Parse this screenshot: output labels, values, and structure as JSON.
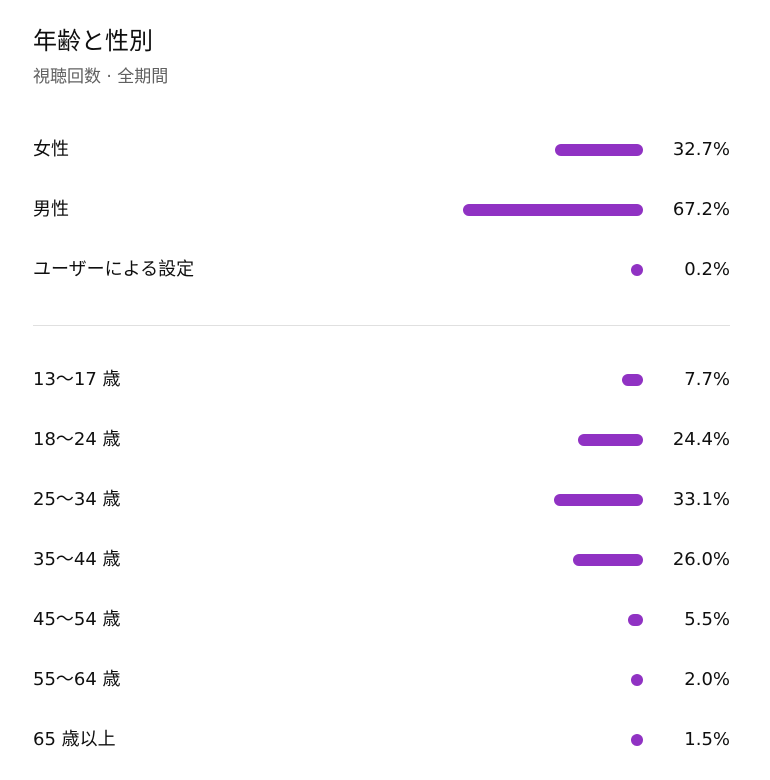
{
  "header": {
    "title": "年齢と性別",
    "subtitle": "視聴回数 · 全期間"
  },
  "colors": {
    "bar": "#9032c3",
    "divider": "#e0e0e0",
    "subtitle": "#606060"
  },
  "chart_data": [
    {
      "type": "bar",
      "orientation": "horizontal",
      "title": "",
      "categories": [
        "女性",
        "男性",
        "ユーザーによる設定"
      ],
      "values": [
        32.7,
        67.2,
        0.2
      ],
      "value_labels": [
        "32.7%",
        "67.2%",
        "0.2%"
      ],
      "unit": "%",
      "xlim": [
        0,
        67.2
      ]
    },
    {
      "type": "bar",
      "orientation": "horizontal",
      "title": "",
      "categories": [
        "13〜17 歳",
        "18〜24 歳",
        "25〜34 歳",
        "35〜44 歳",
        "45〜54 歳",
        "55〜64 歳",
        "65 歳以上"
      ],
      "values": [
        7.7,
        24.4,
        33.1,
        26.0,
        5.5,
        2.0,
        1.5
      ],
      "value_labels": [
        "7.7%",
        "24.4%",
        "33.1%",
        "26.0%",
        "5.5%",
        "2.0%",
        "1.5%"
      ],
      "unit": "%",
      "xlim": [
        0,
        67.2
      ]
    }
  ]
}
